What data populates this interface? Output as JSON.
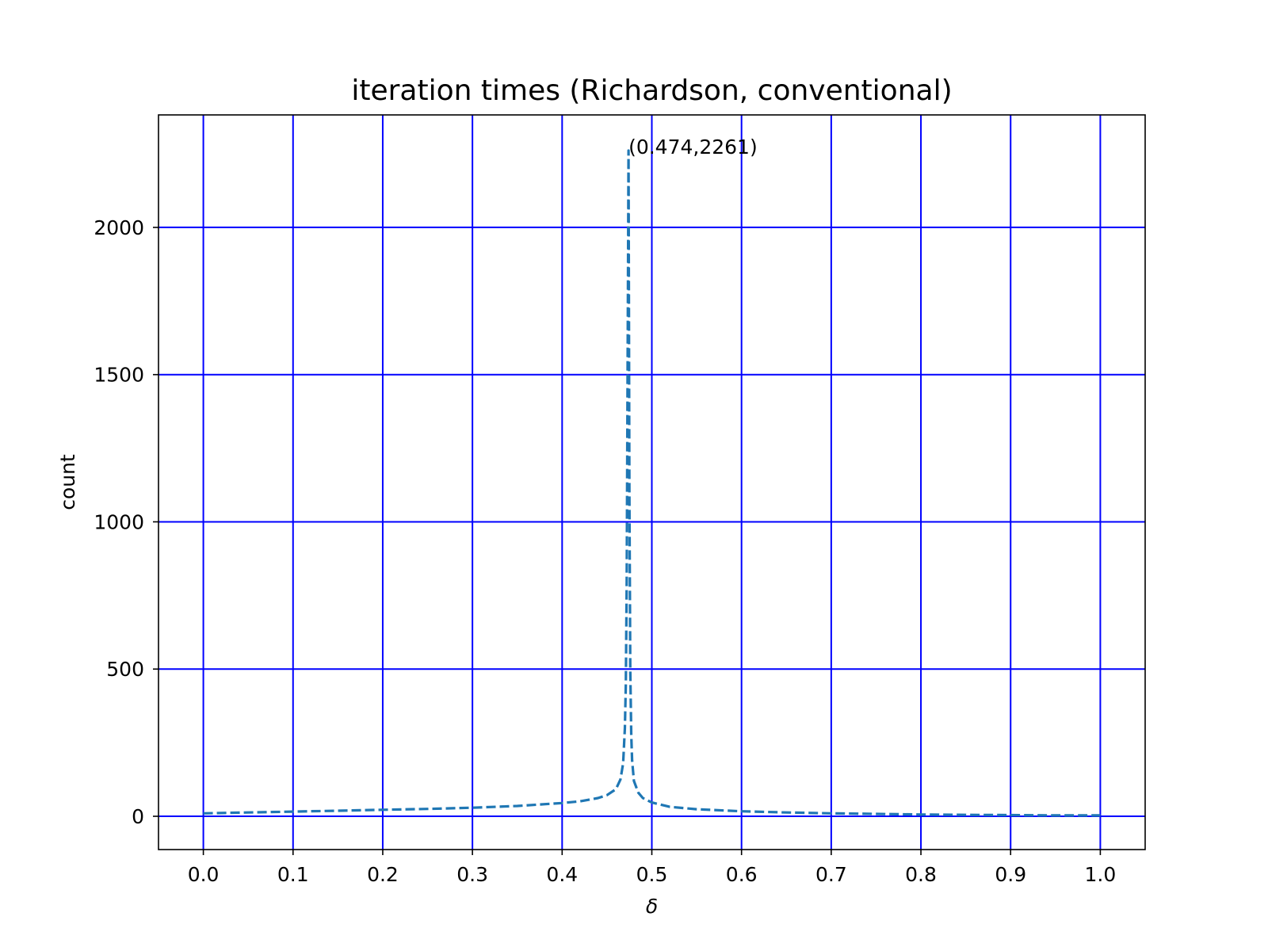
{
  "chart_data": {
    "type": "line",
    "title": "iteration times (Richardson, conventional)",
    "xlabel": "δ",
    "ylabel": "count",
    "xlim": [
      -0.05,
      1.05
    ],
    "ylim": [
      -113,
      2382
    ],
    "xticks": [
      0.0,
      0.1,
      0.2,
      0.3,
      0.4,
      0.5,
      0.6,
      0.7,
      0.8,
      0.9,
      1.0
    ],
    "xtick_labels": [
      "0.0",
      "0.1",
      "0.2",
      "0.3",
      "0.4",
      "0.5",
      "0.6",
      "0.7",
      "0.8",
      "0.9",
      "1.0"
    ],
    "yticks": [
      0,
      500,
      1000,
      1500,
      2000
    ],
    "ytick_labels": [
      "0",
      "500",
      "1000",
      "1500",
      "2000"
    ],
    "grid": true,
    "grid_color": "#0000ff",
    "line_color": "#1f77b4",
    "line_style": "dashed",
    "series": [
      {
        "x": [
          0.0,
          0.05,
          0.1,
          0.15,
          0.2,
          0.25,
          0.3,
          0.35,
          0.4,
          0.42,
          0.44,
          0.45,
          0.46,
          0.465,
          0.468,
          0.47,
          0.471,
          0.472,
          0.473,
          0.474,
          0.475,
          0.476,
          0.477,
          0.478,
          0.48,
          0.485,
          0.49,
          0.5,
          0.52,
          0.55,
          0.6,
          0.65,
          0.7,
          0.75,
          0.8,
          0.85,
          0.9,
          0.95,
          1.0
        ],
        "y": [
          10,
          13,
          16,
          19,
          22,
          25,
          29,
          35,
          45,
          51,
          62,
          72,
          92,
          125,
          180,
          300,
          450,
          800,
          1500,
          2261,
          1100,
          500,
          280,
          190,
          120,
          80,
          62,
          47,
          32,
          24,
          17,
          13,
          10,
          8,
          6,
          5,
          4,
          3,
          3
        ]
      }
    ],
    "annotations": [
      {
        "x": 0.474,
        "y": 2261,
        "text": "(0.474,2261)"
      }
    ]
  }
}
